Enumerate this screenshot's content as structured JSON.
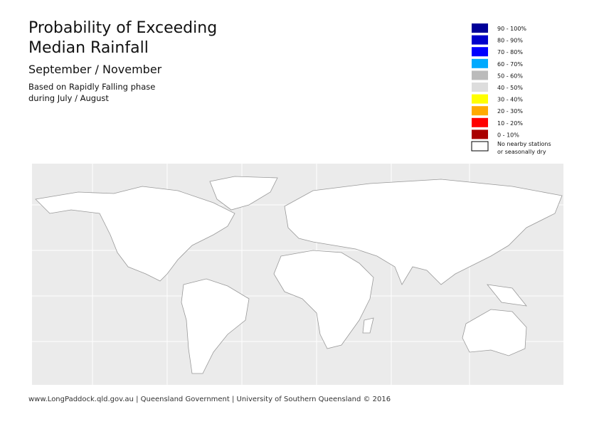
{
  "header": {
    "title_lines": [
      "Probability of Exceeding",
      "Median Rainfall"
    ],
    "period": "September / November",
    "note_lines": [
      "Based on Rapidly Falling phase",
      "during July / August"
    ]
  },
  "legend": {
    "items": [
      {
        "label": "90 - 100%",
        "color": "#000099"
      },
      {
        "label": "80 - 90%",
        "color": "#0000cc"
      },
      {
        "label": "70 - 80%",
        "color": "#0000ff"
      },
      {
        "label": "60 - 70%",
        "color": "#00aaff"
      },
      {
        "label": "50 - 60%",
        "color": "#bbbbbb"
      },
      {
        "label": "40 - 50%",
        "color": "#dddddd"
      },
      {
        "label": "30 - 40%",
        "color": "#ffff00"
      },
      {
        "label": "20 - 30%",
        "color": "#ffaa00"
      },
      {
        "label": "10 - 20%",
        "color": "#ff0000"
      },
      {
        "label": "0 - 10%",
        "color": "#aa0000"
      },
      {
        "label_lines": [
          "No nearby stations",
          "or seasonally dry"
        ],
        "color": "#ffffff"
      }
    ]
  },
  "footer": "www.LongPaddock.qld.gov.au | Queensland Government | University of Southern Queensland © 2016"
}
